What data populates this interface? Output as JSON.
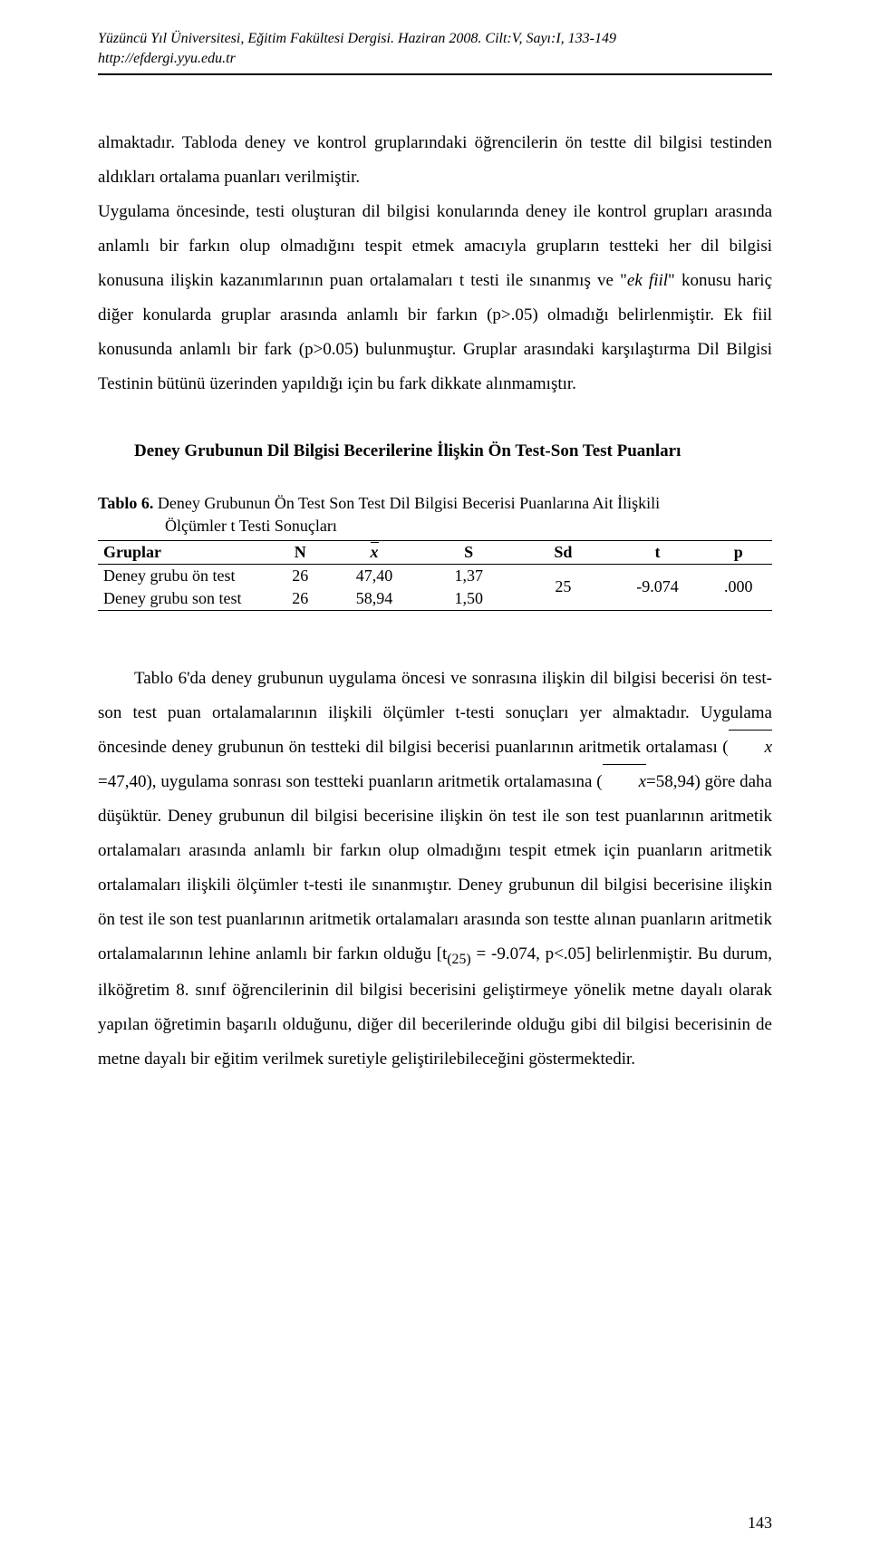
{
  "header": {
    "line1": "Yüzüncü Yıl Üniversitesi, Eğitim Fakültesi Dergisi. Haziran 2008. Cilt:V, Sayı:I, 133-149",
    "line2": "http://efdergi.yyu.edu.tr"
  },
  "paragraphs": {
    "p1": "almaktadır. Tabloda deney ve kontrol gruplarındaki öğrencilerin ön testte dil bilgisi testinden aldıkları ortalama puanları verilmiştir.",
    "p2_part1": "Uygulama öncesinde, testi oluşturan dil bilgisi konularında deney ile kontrol grupları arasında anlamlı bir farkın olup olmadığını tespit etmek amacıyla grupların testteki her dil bilgisi konusuna ilişkin kazanımlarının puan ortalamaları t testi ile sınanmış ve \"",
    "p2_em": "ek fiil",
    "p2_part2": "\" konusu hariç diğer konularda gruplar arasında anlamlı bir farkın (p>.05) olmadığı belirlenmiştir. Ek fiil konusunda anlamlı bir fark (p>0.05) bulunmuştur. Gruplar arasındaki karşılaştırma Dil Bilgisi Testinin bütünü üzerinden yapıldığı için bu fark dikkate alınmamıştır.",
    "p3_part1": "Tablo 6'da deney grubunun uygulama öncesi ve sonrasına ilişkin dil bilgisi becerisi ön test-son test puan ortalamalarının ilişkili ölçümler t-testi sonuçları yer almaktadır. Uygulama öncesinde deney grubunun ön testteki dil bilgisi becerisi puanlarının aritmetik ortalaması (",
    "p3_xbar1_val": "=47,40), uygulama sonrası son testteki puanların aritmetik ortalamasına (",
    "p3_xbar2_val": "=58,94) göre daha düşüktür. Deney grubunun dil bilgisi becerisine ilişkin ön test ile son test puanlarının aritmetik ortalamaları arasında anlamlı bir farkın olup olmadığını tespit etmek için puanların aritmetik ortalamaları ilişkili ölçümler t-testi ile sınanmıştır. Deney grubunun dil bilgisi becerisine ilişkin ön test ile son test puanlarının aritmetik ortalamaları arasında son testte alınan puanların aritmetik ortalamalarının lehine anlamlı bir farkın olduğu [t",
    "p3_sub": "(25)",
    "p3_part2": " = -9.074, p<.05] belirlenmiştir. Bu durum, ilköğretim 8. sınıf öğrencilerinin dil bilgisi becerisini geliştirmeye yönelik metne dayalı olarak yapılan öğretimin başarılı olduğunu, diğer dil becerilerinde olduğu gibi dil bilgisi becerisinin de metne dayalı bir eğitim verilmek suretiyle geliştirilebileceğini göstermektedir."
  },
  "section_heading": "Deney Grubunun Dil Bilgisi Becerilerine İlişkin Ön Test-Son Test Puanları",
  "table6": {
    "caption_label": "Tablo 6.",
    "caption_text_line1": " Deney Grubunun Ön Test Son Test Dil Bilgisi Becerisi Puanlarına Ait İlişkili",
    "caption_text_line2": "Ölçümler t Testi Sonuçları",
    "columns": {
      "group": "Gruplar",
      "n": "N",
      "xbar": "x",
      "s": "S",
      "sd": "Sd",
      "t": "t",
      "p": "p"
    },
    "rows": [
      {
        "group": "Deney grubu ön test",
        "n": "26",
        "xbar": "47,40",
        "s": "1,37"
      },
      {
        "group": "Deney grubu son test",
        "n": "26",
        "xbar": "58,94",
        "s": "1,50"
      }
    ],
    "merged": {
      "sd": "25",
      "t": "-9.074",
      "p": ".000"
    }
  },
  "page_number": "143",
  "x_symbol": "x"
}
